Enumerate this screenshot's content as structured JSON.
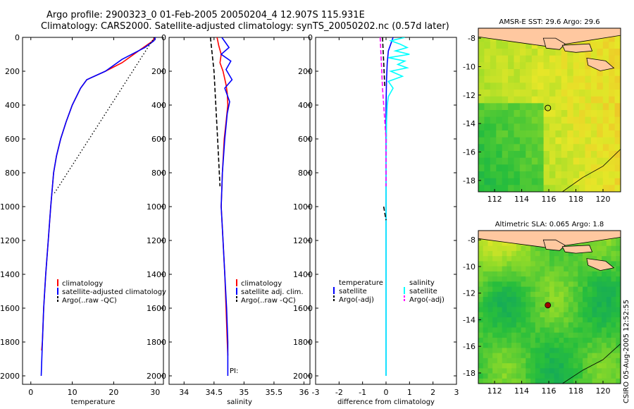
{
  "header": {
    "line1": "Argo profile:  2900323_0 01-Feb-2005 20050204_4 12.907S 115.931E",
    "line2": "Climatology: CARS2000. Satellite-adjusted climatology: synTS_20050202.nc (0.57d later)"
  },
  "side_stamp": "CSIRO 05-Aug-2005 12:52:55",
  "colors": {
    "climatology": "#ff0000",
    "satellite": "#0000ff",
    "argo": "#000000",
    "salinity_satellite": "#00ffff",
    "argo_adj": "#ff00ff",
    "land": "#ffc8a0"
  },
  "chart_data": [
    {
      "id": "temperature",
      "type": "line",
      "xlabel": "temperature",
      "xlim": [
        -2,
        32
      ],
      "ylim": [
        0,
        2050
      ],
      "y_reversed": true,
      "xticks": [
        0,
        10,
        20,
        30
      ],
      "yticks": [
        0,
        200,
        400,
        600,
        800,
        1000,
        1200,
        1400,
        1600,
        1800,
        2000
      ],
      "legend": [
        "climatology",
        "satellite-adjusted climatology",
        "Argo(..raw -QC)"
      ],
      "series": [
        {
          "name": "climatology",
          "color": "#ff0000",
          "style": "solid",
          "x": [
            29.8,
            29.5,
            26,
            22,
            18,
            13.5,
            12,
            10,
            8.5,
            7.2,
            6.2,
            5.5,
            4.8,
            4.2,
            3.6,
            3.1,
            2.8,
            2.6
          ],
          "y": [
            0,
            20,
            80,
            150,
            200,
            250,
            300,
            400,
            500,
            600,
            700,
            800,
            1000,
            1200,
            1400,
            1600,
            1800,
            1850
          ]
        },
        {
          "name": "satellite-adjusted climatology",
          "color": "#0000ff",
          "style": "solid",
          "x": [
            30.1,
            29.7,
            27.5,
            22,
            18,
            13.5,
            12,
            10,
            8.5,
            7.2,
            6.2,
            5.5,
            4.8,
            4.2,
            3.6,
            3.1,
            2.8,
            2.5
          ],
          "y": [
            0,
            20,
            60,
            130,
            200,
            250,
            300,
            400,
            500,
            600,
            700,
            800,
            1000,
            1200,
            1400,
            1600,
            1800,
            2000
          ]
        },
        {
          "name": "Argo(..raw -QC)",
          "color": "#000000",
          "style": "dotted",
          "x": [
            29.8,
            5.7
          ],
          "y": [
            0,
            920
          ]
        }
      ]
    },
    {
      "id": "salinity",
      "type": "line",
      "xlabel": "salinity",
      "xlim": [
        33.75,
        36.1
      ],
      "ylim": [
        0,
        2050
      ],
      "y_reversed": true,
      "xticks": [
        34,
        34.5,
        35,
        35.5,
        36
      ],
      "yticks": [
        0,
        200,
        400,
        600,
        800,
        1000,
        1200,
        1400,
        1600,
        1800,
        2000
      ],
      "legend": [
        "climatology",
        "satellite adj. clim.",
        "Argo(..raw -QC)"
      ],
      "annotation": "PI:",
      "series": [
        {
          "name": "climatology",
          "color": "#ff0000",
          "style": "solid",
          "x": [
            34.55,
            34.58,
            34.62,
            34.6,
            34.65,
            34.7,
            34.72,
            34.73,
            34.7,
            34.67,
            34.64,
            34.62,
            34.65,
            34.68,
            34.7,
            34.72,
            34.73
          ],
          "y": [
            0,
            50,
            100,
            150,
            200,
            280,
            330,
            400,
            500,
            600,
            800,
            1000,
            1200,
            1400,
            1600,
            1800,
            1880
          ]
        },
        {
          "name": "satellite adj. clim.",
          "color": "#0000ff",
          "style": "solid",
          "x": [
            34.63,
            34.75,
            34.62,
            34.78,
            34.7,
            34.8,
            34.68,
            34.76,
            34.72,
            34.68,
            34.64,
            34.62,
            34.65,
            34.68,
            34.71,
            34.73,
            34.73
          ],
          "y": [
            0,
            60,
            100,
            140,
            190,
            250,
            300,
            380,
            450,
            600,
            800,
            1000,
            1200,
            1400,
            1600,
            1800,
            2000
          ]
        },
        {
          "name": "Argo(..raw -QC)",
          "color": "#000000",
          "style": "dashed",
          "x": [
            34.44,
            34.5,
            34.56,
            34.6
          ],
          "y": [
            0,
            200,
            600,
            880
          ]
        }
      ]
    },
    {
      "id": "difference",
      "type": "line",
      "xlabel": "difference from climatology",
      "xlim": [
        -3,
        3
      ],
      "ylim": [
        0,
        2050
      ],
      "y_reversed": true,
      "xticks": [
        -3,
        -2,
        -1,
        0,
        1,
        2,
        3
      ],
      "yticks": [
        0,
        200,
        400,
        600,
        800,
        1000,
        1200,
        1400,
        1600,
        1800,
        2000
      ],
      "legend_left": {
        "title": "temperature",
        "items": [
          "satellite",
          "Argo(-adj)"
        ]
      },
      "legend_right": {
        "title": "salinity",
        "items": [
          "satellite",
          "Argo(-adj)"
        ]
      },
      "series": [
        {
          "name": "temperature satellite",
          "color": "#0000ff",
          "style": "solid",
          "x": [
            0.3,
            0.1,
            0.05,
            0.02,
            0.0,
            0.0,
            0.0,
            0.0,
            0.0
          ],
          "y": [
            0,
            80,
            150,
            250,
            400,
            800,
            1200,
            1600,
            2000
          ]
        },
        {
          "name": "salinity satellite",
          "color": "#00ffff",
          "style": "solid",
          "x": [
            0.8,
            0.2,
            0.6,
            0.9,
            0.4,
            1.0,
            0.1,
            0.8,
            0.5,
            0.9,
            0.2,
            0.7,
            0.1,
            0.3,
            0.1,
            0.05,
            0.02,
            0.0,
            0.0,
            0.0,
            0.0
          ],
          "y": [
            0,
            20,
            40,
            60,
            80,
            100,
            120,
            140,
            160,
            180,
            200,
            230,
            260,
            300,
            350,
            400,
            500,
            800,
            1200,
            1600,
            2000
          ]
        },
        {
          "name": "salinity Argo(-adj)",
          "color": "#ff00ff",
          "style": "dashed",
          "x": [
            -0.25,
            -0.15,
            0.0,
            0.0
          ],
          "y": [
            0,
            300,
            600,
            880
          ]
        },
        {
          "name": "temperature Argo(-adj)",
          "color": "#000000",
          "style": "dashed",
          "x": [
            -0.15,
            -0.1,
            -0.05
          ],
          "y": [
            0,
            150,
            300
          ]
        },
        {
          "name": "temperature Argo(-adj) deep",
          "color": "#000000",
          "style": "dashed",
          "x": [
            -0.1,
            -0.05,
            0.0
          ],
          "y": [
            1000,
            1040,
            1080
          ]
        }
      ]
    },
    {
      "id": "sst_map",
      "type": "heatmap",
      "title": "AMSR-E SST: 29.6 Argo: 29.6",
      "xlim": [
        110.8,
        121.3
      ],
      "ylim": [
        -18.8,
        -7.3
      ],
      "xticks": [
        112,
        114,
        116,
        118,
        120
      ],
      "yticks": [
        -8,
        -10,
        -12,
        -14,
        -16,
        -18
      ],
      "marker": {
        "lon": 115.931,
        "lat": -12.907,
        "style": "open-circle"
      }
    },
    {
      "id": "sla_map",
      "type": "heatmap",
      "title": "Altimetric SLA: 0.065 Argo: 1.8",
      "xlim": [
        110.8,
        121.3
      ],
      "ylim": [
        -18.8,
        -7.3
      ],
      "xticks": [
        112,
        114,
        116,
        118,
        120
      ],
      "yticks": [
        -8,
        -10,
        -12,
        -14,
        -16,
        -18
      ],
      "marker": {
        "lon": 115.931,
        "lat": -12.907,
        "style": "filled-circle",
        "color": "#a00000"
      }
    }
  ]
}
